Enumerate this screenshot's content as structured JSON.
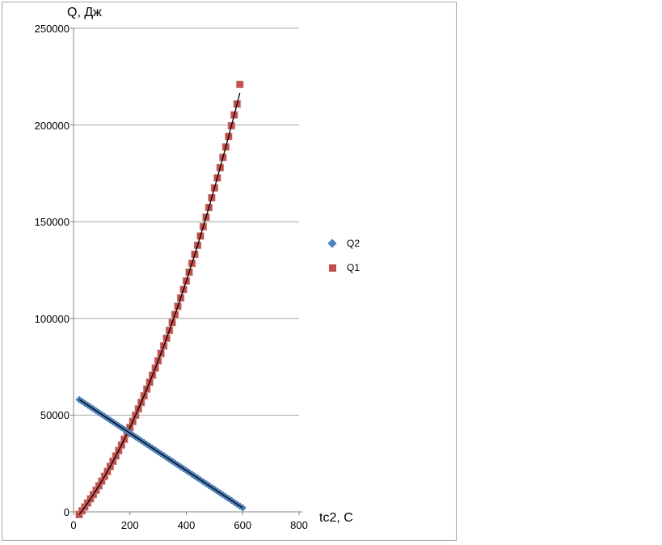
{
  "page": {
    "background": "#ffffff",
    "chart_border_color": "#a6a6a6"
  },
  "chart_data": {
    "type": "scatter",
    "title": "",
    "ylabel": "Q, Дж",
    "xlabel": "tc2, C",
    "xlim": [
      0,
      800
    ],
    "ylim": [
      0,
      250000
    ],
    "xticks": [
      0,
      200,
      400,
      600,
      800
    ],
    "yticks": [
      0,
      50000,
      100000,
      150000,
      200000,
      250000
    ],
    "grid": "horizontal",
    "legend_position": "right",
    "colors": {
      "axis": "#808080",
      "gridline": "#a6a6a6",
      "trendline": "#000000"
    },
    "series": [
      {
        "name": "Q2",
        "marker": "diamond",
        "color": "#4f81bd",
        "trendline": {
          "type": "linear",
          "coefficients": [
            60000,
            -96.6
          ],
          "x_range": [
            20,
            600
          ]
        },
        "x": [
          20,
          30,
          40,
          50,
          60,
          70,
          80,
          90,
          100,
          110,
          120,
          130,
          140,
          150,
          160,
          170,
          180,
          190,
          200,
          210,
          220,
          230,
          240,
          250,
          260,
          270,
          280,
          290,
          300,
          310,
          320,
          330,
          340,
          350,
          360,
          370,
          380,
          390,
          400,
          410,
          420,
          430,
          440,
          450,
          460,
          470,
          480,
          490,
          500,
          510,
          520,
          530,
          540,
          550,
          560,
          570,
          580,
          590,
          600
        ],
        "y": [
          58068,
          57102,
          56136,
          55170,
          54204,
          53238,
          52272,
          51306,
          50340,
          49374,
          48408,
          47442,
          46476,
          45510,
          44544,
          43578,
          42612,
          41646,
          40680,
          39714,
          38748,
          37782,
          36816,
          35850,
          34884,
          33918,
          32952,
          31986,
          31020,
          30054,
          29088,
          28122,
          27156,
          26190,
          25224,
          24258,
          23292,
          22326,
          21360,
          20394,
          19428,
          18462,
          17496,
          16530,
          15564,
          14598,
          13632,
          12666,
          11700,
          10734,
          9768,
          8802,
          7836,
          6870,
          5904,
          4938,
          3972,
          3006,
          2040
        ]
      },
      {
        "name": "Q1",
        "marker": "square",
        "color": "#c0504d",
        "trendline": {
          "type": "polynomial",
          "order": 2,
          "coefficients": [
            -5000,
            175,
            0.34
          ],
          "x_range": [
            20,
            590
          ]
        },
        "x": [
          20,
          30,
          40,
          50,
          60,
          70,
          80,
          90,
          100,
          110,
          120,
          130,
          140,
          150,
          160,
          170,
          180,
          190,
          200,
          210,
          220,
          230,
          240,
          250,
          260,
          270,
          280,
          290,
          300,
          310,
          320,
          330,
          340,
          350,
          360,
          370,
          380,
          390,
          400,
          410,
          420,
          430,
          440,
          450,
          460,
          470,
          480,
          490,
          500,
          510,
          520,
          530,
          540,
          550,
          560,
          570,
          580,
          590
        ],
        "y": [
          -1364,
          556,
          2544,
          4600,
          6724,
          8916,
          11176,
          13504,
          15900,
          18364,
          20896,
          23496,
          26164,
          28900,
          31704,
          34576,
          37516,
          40524,
          43600,
          46744,
          49956,
          53236,
          56584,
          60000,
          63484,
          67036,
          70656,
          74344,
          78100,
          81924,
          85816,
          89776,
          93804,
          97900,
          102064,
          106296,
          110596,
          114964,
          119400,
          123904,
          128476,
          133116,
          137824,
          142600,
          147444,
          152356,
          157336,
          162384,
          167500,
          172684,
          177936,
          183256,
          188644,
          194100,
          199624,
          205216,
          210876,
          221000
        ]
      }
    ]
  }
}
